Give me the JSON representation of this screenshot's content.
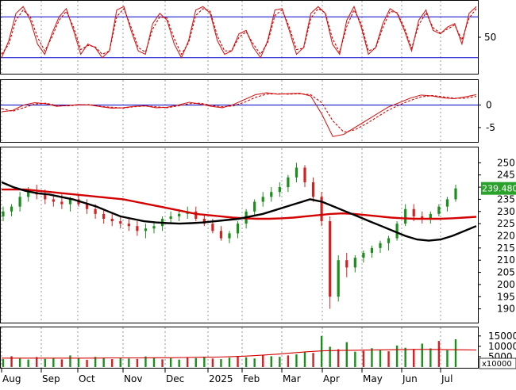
{
  "chart_data": {
    "type": "line",
    "title": "",
    "grid": "vertical dotted lines at month starts",
    "colors": {
      "up_candle": "#1a8f1a",
      "down_candle": "#d42020",
      "ma_long": "#d40000",
      "ma_short": "#000000",
      "reference_line": "#0000cc",
      "signal_dashed": "#d40000",
      "last_price_box": "#2aa12a"
    },
    "x_axis": {
      "tick_labels": [
        "Aug",
        "Sep",
        "Oct",
        "Nov",
        "Dec",
        "2025",
        "Feb",
        "Mar",
        "Apr",
        "May",
        "Jun",
        "Jul"
      ]
    },
    "panels": [
      {
        "name": "stochastic",
        "y_ticks": [
          "50"
        ],
        "ylim": [
          0,
          100
        ],
        "reference_lines": [
          80,
          20
        ],
        "series": [
          {
            "style": "solid",
            "values": [
              20,
              45,
              85,
              95,
              75,
              40,
              25,
              55,
              80,
              92,
              60,
              25,
              40,
              35,
              20,
              30,
              90,
              95,
              60,
              30,
              25,
              70,
              85,
              75,
              40,
              20,
              45,
              90,
              95,
              85,
              45,
              25,
              30,
              55,
              60,
              35,
              20,
              45,
              90,
              92,
              60,
              25,
              35,
              85,
              95,
              85,
              40,
              25,
              75,
              95,
              65,
              25,
              35,
              70,
              92,
              85,
              60,
              30,
              75,
              90,
              60,
              55,
              65,
              70,
              40,
              85,
              95
            ]
          },
          {
            "style": "dashed",
            "values": [
              25,
              40,
              75,
              90,
              80,
              50,
              30,
              50,
              75,
              88,
              65,
              32,
              38,
              36,
              25,
              30,
              80,
              92,
              65,
              35,
              28,
              62,
              80,
              78,
              48,
              25,
              42,
              82,
              92,
              88,
              52,
              30,
              30,
              50,
              58,
              40,
              25,
              42,
              82,
              90,
              65,
              32,
              34,
              78,
              92,
              86,
              48,
              28,
              66,
              90,
              70,
              30,
              34,
              64,
              88,
              86,
              64,
              34,
              68,
              86,
              64,
              56,
              62,
              68,
              46,
              78,
              92
            ]
          }
        ]
      },
      {
        "name": "macd",
        "y_ticks": [
          "0",
          "-5"
        ],
        "ylim": [
          -8,
          5
        ],
        "reference_lines": [
          0
        ],
        "series": [
          {
            "style": "solid",
            "values": [
              -1.5,
              -1.2,
              0.0,
              0.5,
              0.3,
              -0.3,
              -0.1,
              0.1,
              0.0,
              -0.4,
              -0.7,
              -0.6,
              -0.3,
              -0.2,
              -0.6,
              -0.5,
              0.0,
              0.6,
              0.2,
              -0.3,
              -0.6,
              0.1,
              1.2,
              2.3,
              2.7,
              2.4,
              2.5,
              2.6,
              2.0,
              -2.0,
              -7.0,
              -6.5,
              -5.0,
              -3.5,
              -2.0,
              -0.5,
              0.5,
              1.5,
              2.2,
              2.0,
              1.6,
              1.4,
              1.8,
              2.3
            ]
          },
          {
            "style": "dashed",
            "values": [
              -0.8,
              -1.4,
              -0.6,
              0.2,
              0.4,
              -0.1,
              -0.2,
              0.0,
              0.1,
              -0.3,
              -0.5,
              -0.7,
              -0.4,
              -0.2,
              -0.4,
              -0.6,
              -0.2,
              0.3,
              0.4,
              -0.1,
              -0.4,
              -0.2,
              0.6,
              1.7,
              2.4,
              2.5,
              2.4,
              2.5,
              2.3,
              0.5,
              -3.5,
              -6.0,
              -5.5,
              -4.2,
              -2.7,
              -1.2,
              0.0,
              1.0,
              1.8,
              2.1,
              1.8,
              1.5,
              1.5,
              1.9
            ]
          }
        ]
      },
      {
        "name": "price",
        "y_ticks": [
          "250",
          "245",
          "240",
          "235",
          "230",
          "225",
          "220",
          "215",
          "210",
          "205",
          "200",
          "195",
          "190"
        ],
        "ylim": [
          185,
          255
        ],
        "last_price": "239.4800",
        "candles": [
          [
            228,
            232,
            226,
            230
          ],
          [
            230,
            233,
            228,
            232
          ],
          [
            232,
            238,
            230,
            236
          ],
          [
            236,
            240,
            234,
            238
          ],
          [
            238,
            241,
            235,
            237
          ],
          [
            237,
            239,
            233,
            235
          ],
          [
            235,
            237,
            232,
            234
          ],
          [
            234,
            237,
            231,
            233
          ],
          [
            233,
            236,
            230,
            235
          ],
          [
            235,
            237,
            232,
            233
          ],
          [
            233,
            235,
            229,
            231
          ],
          [
            231,
            233,
            227,
            229
          ],
          [
            229,
            231,
            225,
            227
          ],
          [
            227,
            229,
            224,
            226
          ],
          [
            226,
            228,
            223,
            225
          ],
          [
            225,
            227,
            222,
            224
          ],
          [
            224,
            226,
            220,
            222
          ],
          [
            222,
            225,
            219,
            223
          ],
          [
            223,
            226,
            221,
            224
          ],
          [
            224,
            228,
            222,
            227
          ],
          [
            227,
            230,
            225,
            228
          ],
          [
            228,
            231,
            226,
            229
          ],
          [
            229,
            232,
            227,
            230
          ],
          [
            230,
            232,
            226,
            227
          ],
          [
            227,
            229,
            224,
            225
          ],
          [
            225,
            227,
            221,
            222
          ],
          [
            222,
            224,
            218,
            219
          ],
          [
            219,
            222,
            217,
            221
          ],
          [
            221,
            226,
            219,
            225
          ],
          [
            225,
            231,
            223,
            230
          ],
          [
            230,
            235,
            228,
            234
          ],
          [
            234,
            238,
            232,
            236
          ],
          [
            236,
            240,
            234,
            238
          ],
          [
            238,
            242,
            236,
            240
          ],
          [
            240,
            245,
            238,
            244
          ],
          [
            244,
            250,
            242,
            248
          ],
          [
            248,
            249,
            240,
            242
          ],
          [
            242,
            244,
            234,
            236
          ],
          [
            236,
            238,
            224,
            226
          ],
          [
            226,
            228,
            190,
            195
          ],
          [
            195,
            212,
            193,
            210
          ],
          [
            210,
            213,
            203,
            207
          ],
          [
            207,
            212,
            205,
            211
          ],
          [
            211,
            214,
            209,
            213
          ],
          [
            213,
            216,
            211,
            215
          ],
          [
            215,
            218,
            213,
            217
          ],
          [
            217,
            220,
            214,
            219
          ],
          [
            219,
            226,
            218,
            225
          ],
          [
            225,
            233,
            224,
            231
          ],
          [
            231,
            233,
            226,
            228
          ],
          [
            228,
            230,
            225,
            227
          ],
          [
            227,
            230,
            225,
            229
          ],
          [
            229,
            233,
            228,
            232
          ],
          [
            232,
            236,
            230,
            235
          ],
          [
            235,
            241,
            234,
            239.48
          ]
        ],
        "series": [
          {
            "style": "solid-thick",
            "color": "#d40000",
            "values": [
              239,
              239,
              239,
              238.5,
              238,
              237.5,
              237,
              236.5,
              236,
              235.5,
              235,
              234,
              233,
              232,
              231,
              230,
              229,
              228.5,
              228,
              227.5,
              227.2,
              227,
              227,
              227.2,
              227.5,
              228,
              228.5,
              229,
              229.2,
              229,
              228.5,
              228,
              227.5,
              227.2,
              227,
              227,
              227,
              227.2,
              227.5,
              227.8
            ]
          },
          {
            "style": "solid-thick",
            "color": "#000000",
            "values": [
              242,
              240,
              238.5,
              237.5,
              237,
              236,
              235,
              233.5,
              232,
              230,
              228,
              227,
              226,
              225.5,
              225.2,
              225,
              225.2,
              225.5,
              226,
              226.5,
              227,
              228,
              229,
              230.5,
              232,
              233.5,
              235,
              234,
              232,
              230,
              228,
              226,
              224,
              222,
              220,
              218.5,
              218,
              218.5,
              220,
              222,
              224
            ]
          }
        ]
      },
      {
        "name": "volume",
        "y_ticks": [
          "15000",
          "10000",
          "5000"
        ],
        "ylim": [
          0,
          18000
        ],
        "scale_label": "x10000",
        "bars": [
          3800,
          5200,
          4100,
          3600,
          4800,
          3900,
          4400,
          3700,
          5600,
          4200,
          3500,
          4900,
          4300,
          3800,
          4600,
          4100,
          3900,
          5100,
          4400,
          3700,
          4200,
          3600,
          4800,
          4300,
          5000,
          4100,
          3800,
          4500,
          5300,
          4700,
          4100,
          5800,
          5200,
          4900,
          5600,
          6100,
          7200,
          6800,
          15000,
          9800,
          8600,
          12000,
          7400,
          7800,
          9100,
          8200,
          7600,
          10400,
          9300,
          8700,
          11300,
          9000,
          12600,
          8100,
          13400
        ],
        "series": [
          {
            "style": "solid",
            "color": "#d40000",
            "values": [
              4300,
              4300,
              4300,
              4300,
              4300,
              4300,
              4300,
              4400,
              4400,
              4400,
              4500,
              4500,
              4600,
              4700,
              4800,
              5000,
              5300,
              5700,
              6200,
              6800,
              7400,
              7800,
              8000,
              8100,
              8200,
              8300,
              8400,
              8500,
              8500,
              8400,
              8300,
              8200
            ]
          }
        ]
      }
    ]
  }
}
